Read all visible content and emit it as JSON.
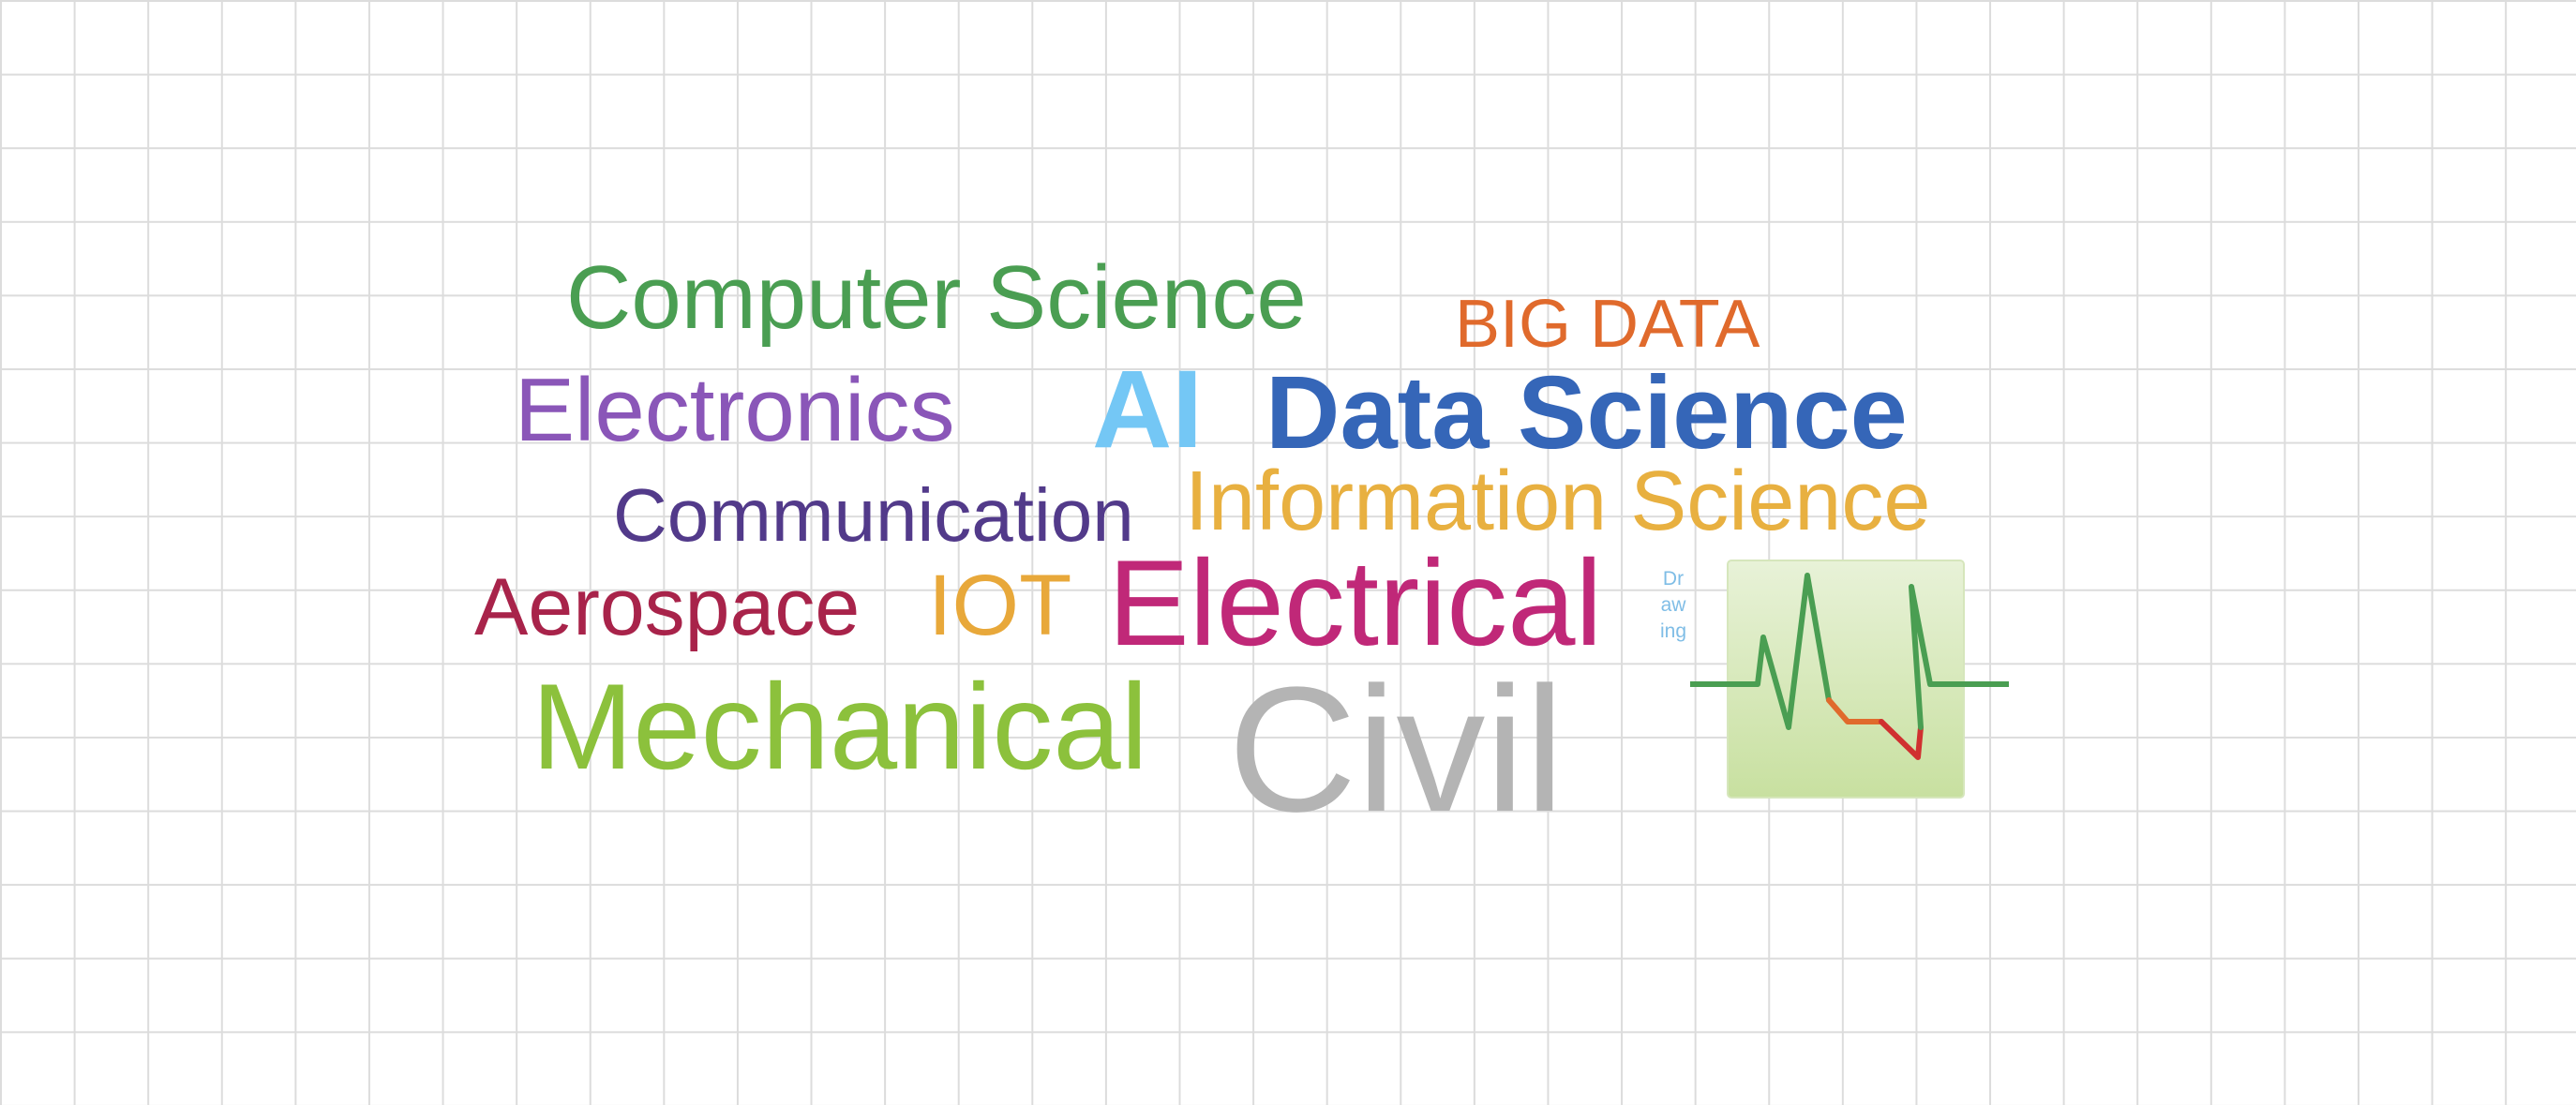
{
  "words": {
    "computer_science": "Computer Science",
    "big_data": "BIG DATA",
    "electronics": "Electronics",
    "ai": "AI",
    "data_science": "Data Science",
    "communication": "Communication",
    "information_science": "Information Science",
    "aerospace": "Aerospace",
    "iot": "IOT",
    "electrical": "Electrical",
    "mechanical": "Mechanical",
    "civil": "Civil",
    "drawing": "Drawing"
  },
  "colors": {
    "computer_science": "#4a9e52",
    "big_data": "#e06a2c",
    "electronics": "#8a56b8",
    "ai": "#74c7f5",
    "data_science": "#3566b8",
    "communication": "#523a8a",
    "information_science": "#e8b040",
    "aerospace": "#a8234a",
    "iot": "#e8a83a",
    "electrical": "#c02878",
    "mechanical": "#8cc13c",
    "civil": "#b4b4b4",
    "drawing": "#7fbde6",
    "chart_panel": "#c8e0a0",
    "chart_line_up": "#4a9e52",
    "chart_line_mid": "#e06a2c",
    "chart_line_down": "#d03030"
  },
  "icons": {
    "chart_thumbnail": "pulse-line-chart-icon"
  }
}
